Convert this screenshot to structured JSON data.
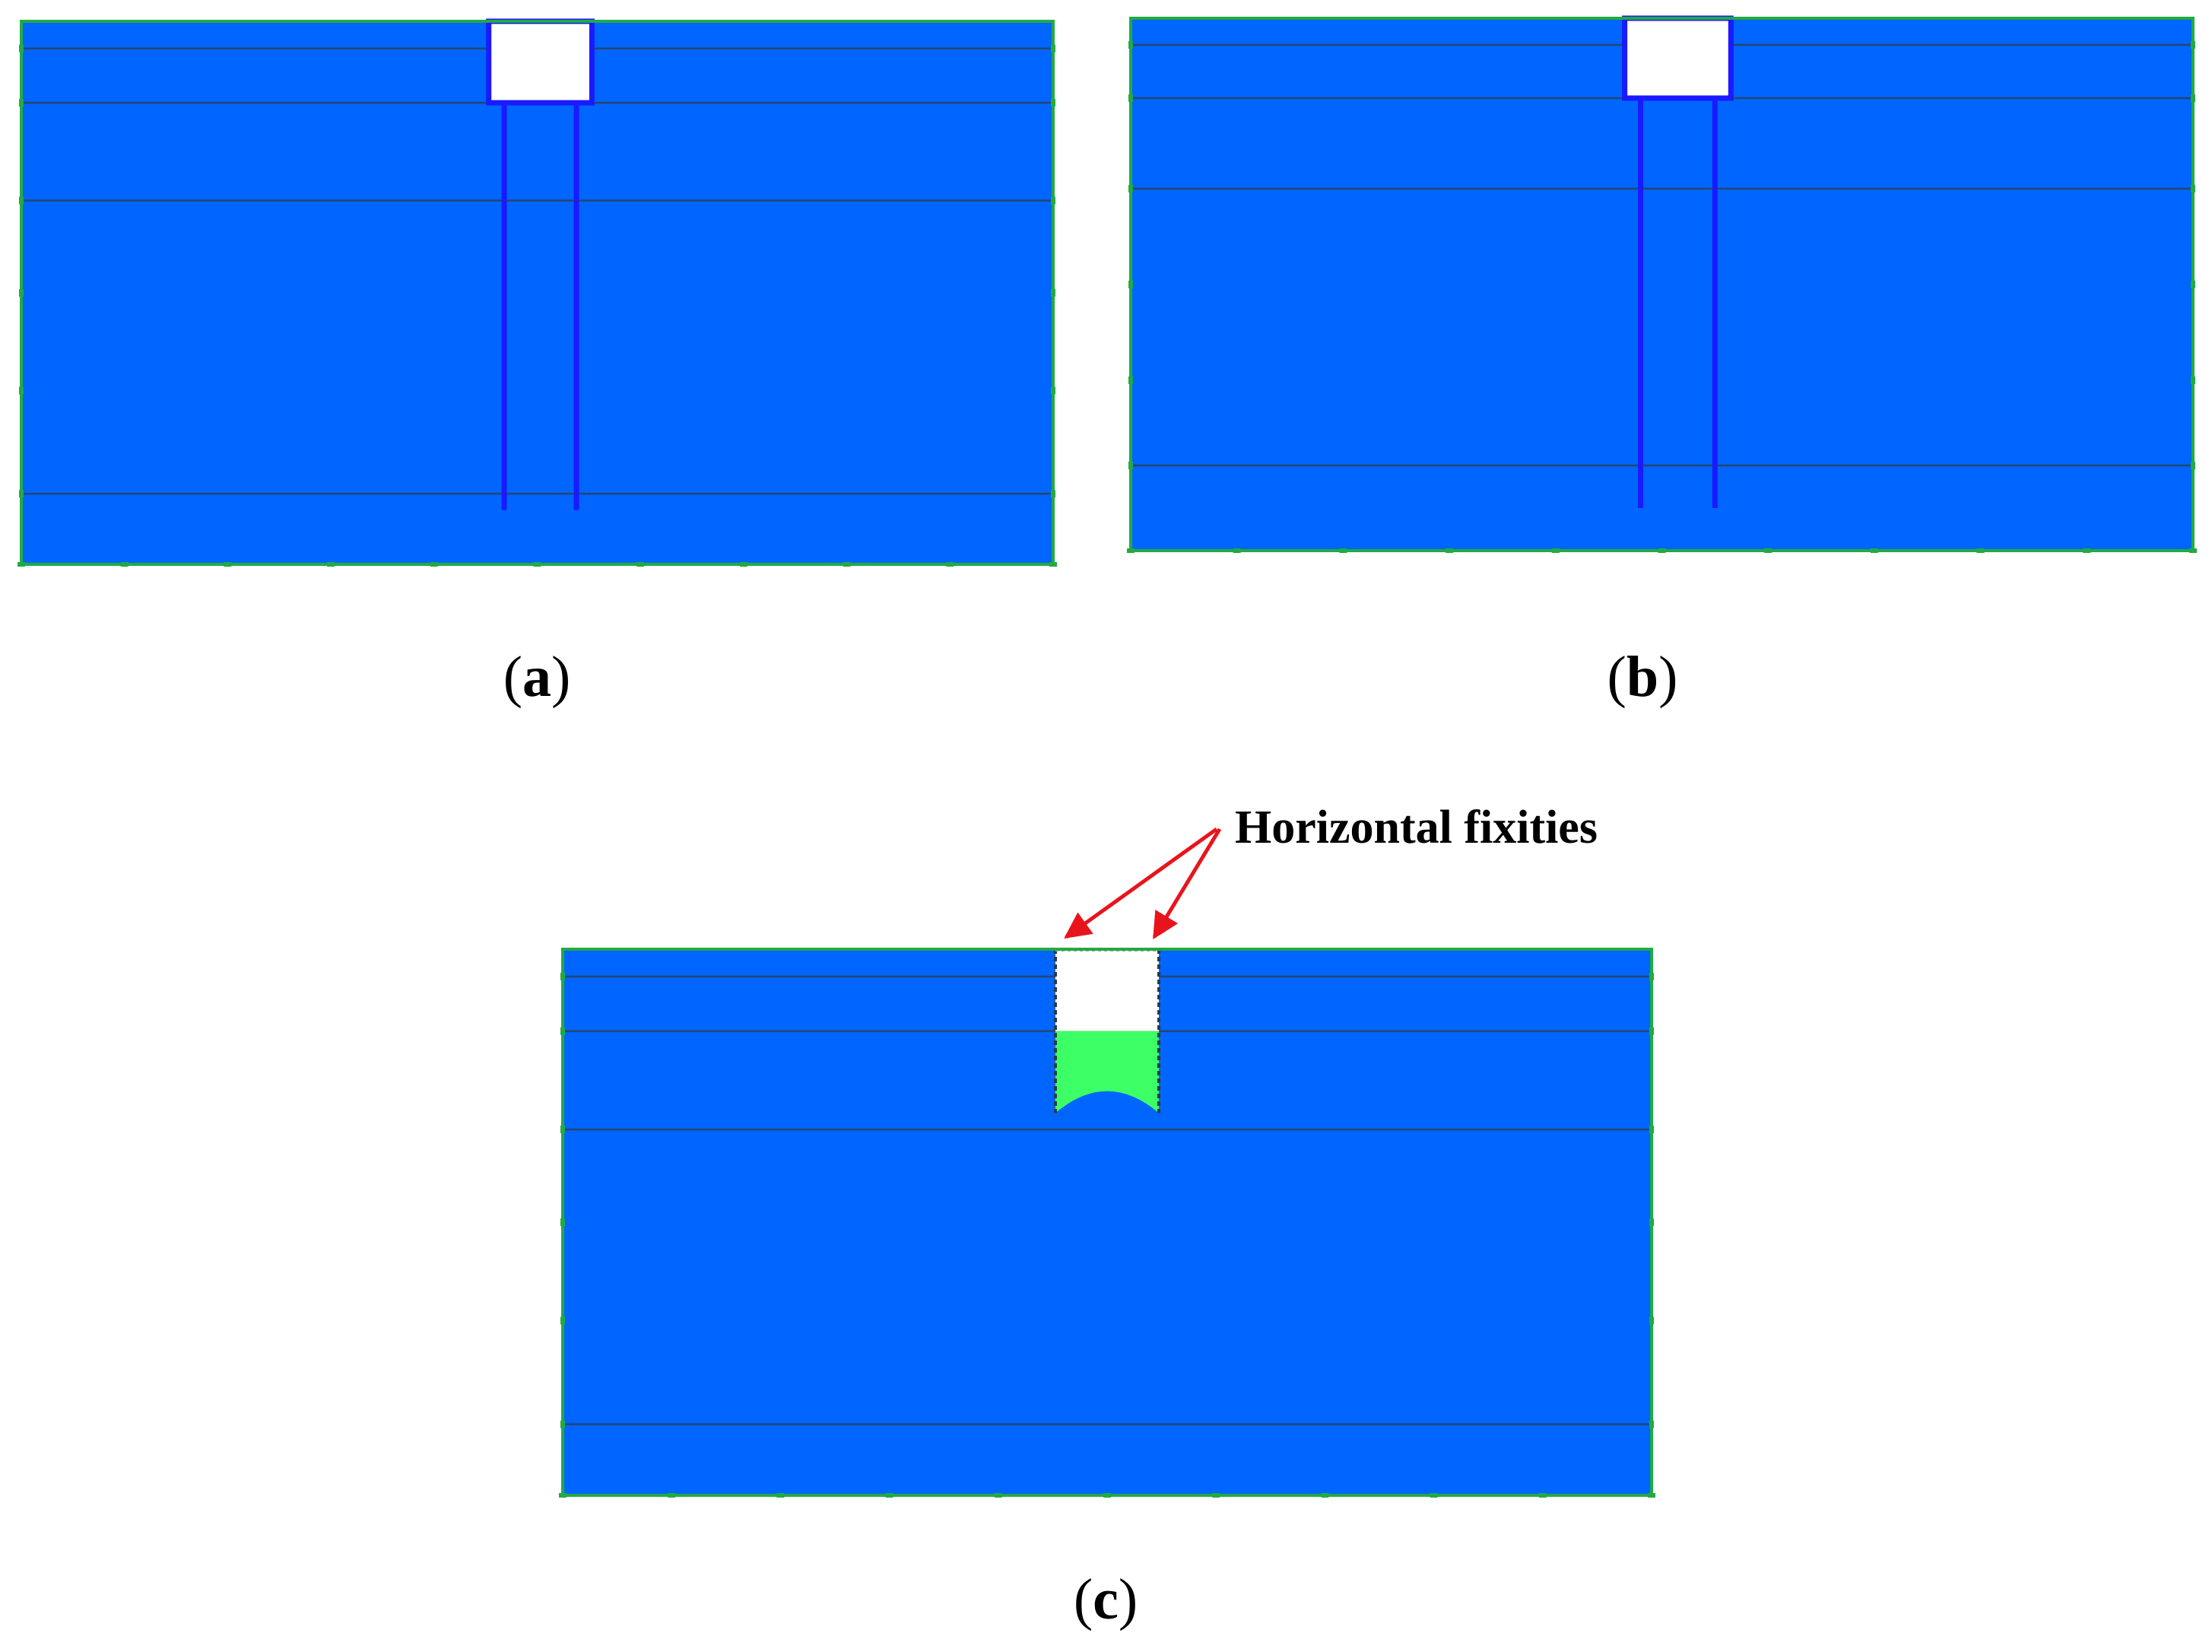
{
  "panels": [
    {
      "id": "a",
      "caption": "a",
      "variant": "sheet-piles-full"
    },
    {
      "id": "b",
      "caption": "b",
      "variant": "sheet-piles-reduced"
    },
    {
      "id": "c",
      "caption": "c",
      "variant": "horizontal-fixities"
    }
  ],
  "annotation": {
    "text": "Horizontal fixities",
    "color": "#e8141c"
  },
  "palette": [
    "#ff0000",
    "#ff3b00",
    "#ff7a00",
    "#ffb000",
    "#ffe000",
    "#c8ff00",
    "#66ff33",
    "#1eff8c",
    "#00ffe6",
    "#00d6ff",
    "#00a8ff",
    "#0a7dff",
    "#0066ff",
    "#0a5ff0"
  ],
  "colors": {
    "structure": "#1a1aff",
    "boundary": "#22aa44",
    "layer_line": "#26466e"
  }
}
